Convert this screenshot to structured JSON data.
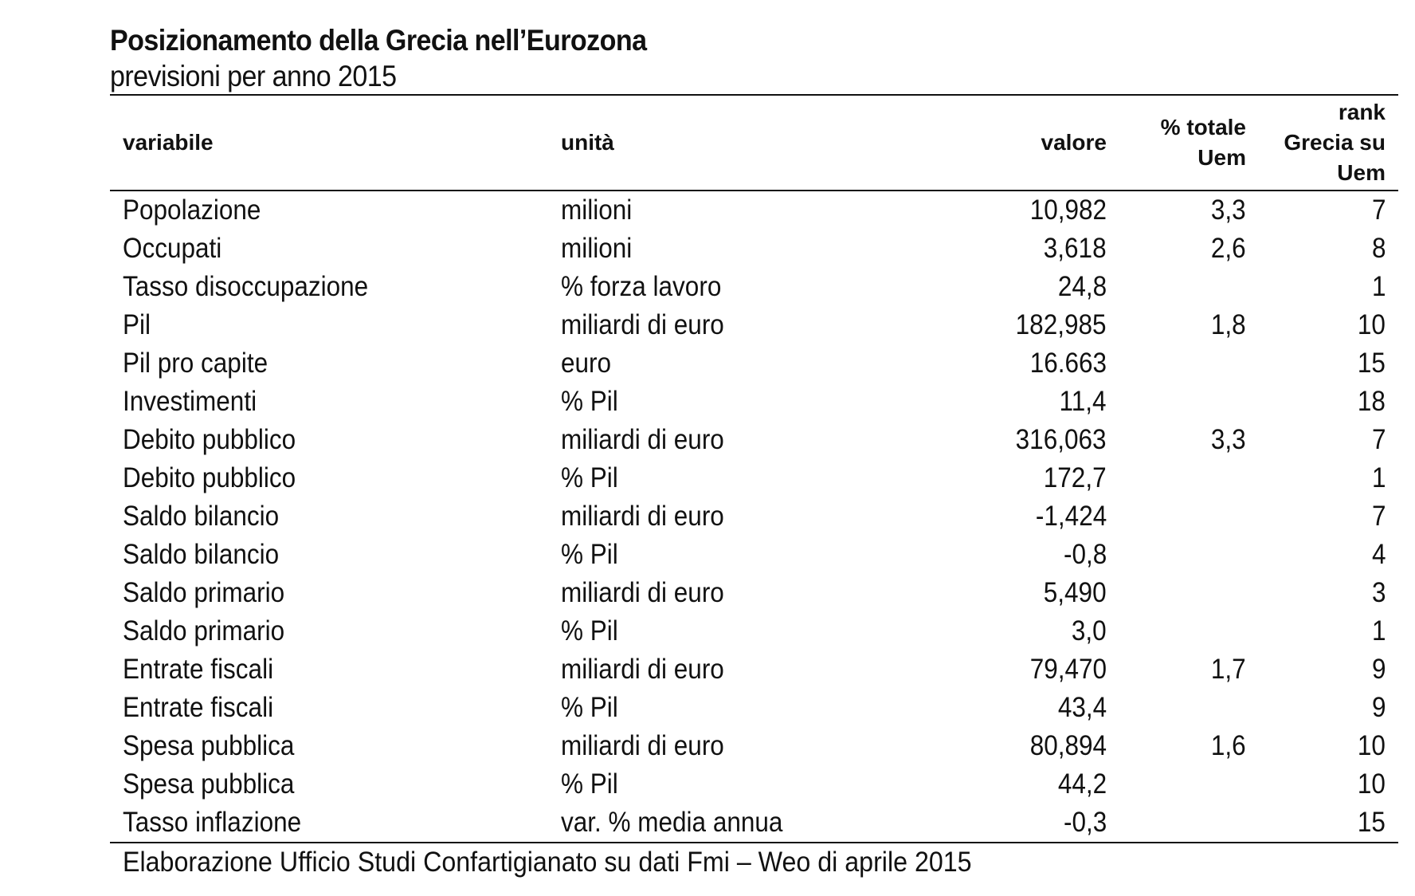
{
  "title": "Posizionamento della Grecia nell’Eurozona",
  "subtitle": "previsioni per anno 2015",
  "headers": {
    "variabile": "variabile",
    "unita": "unità",
    "valore": "valore",
    "totale_line1": "% totale",
    "totale_line2": "Uem",
    "rank_line1": "rank",
    "rank_line2": "Grecia su",
    "rank_line3": "Uem"
  },
  "rows": [
    {
      "variabile": "Popolazione",
      "unita": "milioni",
      "valore": "10,982",
      "totale": "3,3",
      "rank": "7"
    },
    {
      "variabile": "Occupati",
      "unita": "milioni",
      "valore": "3,618",
      "totale": "2,6",
      "rank": "8"
    },
    {
      "variabile": "Tasso disoccupazione",
      "unita": "% forza lavoro",
      "valore": "24,8",
      "totale": "",
      "rank": "1"
    },
    {
      "variabile": "Pil",
      "unita": "miliardi di euro",
      "valore": "182,985",
      "totale": "1,8",
      "rank": "10"
    },
    {
      "variabile": "Pil pro capite",
      "unita": "euro",
      "valore": "16.663",
      "totale": "",
      "rank": "15"
    },
    {
      "variabile": "Investimenti",
      "unita": "% Pil",
      "valore": "11,4",
      "totale": "",
      "rank": "18"
    },
    {
      "variabile": "Debito pubblico",
      "unita": "miliardi di euro",
      "valore": "316,063",
      "totale": "3,3",
      "rank": "7"
    },
    {
      "variabile": "Debito pubblico",
      "unita": "% Pil",
      "valore": "172,7",
      "totale": "",
      "rank": "1"
    },
    {
      "variabile": "Saldo bilancio",
      "unita": "miliardi di euro",
      "valore": "-1,424",
      "totale": "",
      "rank": "7"
    },
    {
      "variabile": "Saldo bilancio",
      "unita": "% Pil",
      "valore": "-0,8",
      "totale": "",
      "rank": "4"
    },
    {
      "variabile": "Saldo primario",
      "unita": "miliardi di euro",
      "valore": "5,490",
      "totale": "",
      "rank": "3"
    },
    {
      "variabile": "Saldo primario",
      "unita": "% Pil",
      "valore": "3,0",
      "totale": "",
      "rank": "1"
    },
    {
      "variabile": "Entrate fiscali",
      "unita": "miliardi di euro",
      "valore": "79,470",
      "totale": "1,7",
      "rank": "9"
    },
    {
      "variabile": "Entrate fiscali",
      "unita": "% Pil",
      "valore": "43,4",
      "totale": "",
      "rank": "9"
    },
    {
      "variabile": "Spesa pubblica",
      "unita": "miliardi di euro",
      "valore": "80,894",
      "totale": "1,6",
      "rank": "10"
    },
    {
      "variabile": "Spesa pubblica",
      "unita": "% Pil",
      "valore": "44,2",
      "totale": "",
      "rank": "10"
    },
    {
      "variabile": "Tasso inflazione",
      "unita": "var. % media annua",
      "valore": "-0,3",
      "totale": "",
      "rank": "15"
    }
  ],
  "footer": "Elaborazione Ufficio Studi Confartigianato su dati Fmi – Weo di aprile 2015"
}
